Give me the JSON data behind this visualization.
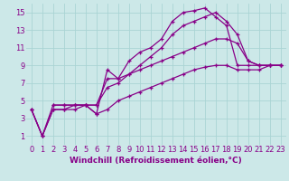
{
  "background_color": "#cce8e8",
  "line_color": "#880088",
  "grid_color": "#aad4d4",
  "xlabel": "Windchill (Refroidissement éolien,°C)",
  "xlabel_fontsize": 6.5,
  "xlim": [
    -0.5,
    23.5
  ],
  "ylim": [
    0,
    16
  ],
  "xticks": [
    0,
    1,
    2,
    3,
    4,
    5,
    6,
    7,
    8,
    9,
    10,
    11,
    12,
    13,
    14,
    15,
    16,
    17,
    18,
    19,
    20,
    21,
    22,
    23
  ],
  "yticks": [
    1,
    3,
    5,
    7,
    9,
    11,
    13,
    15
  ],
  "tick_fontsize": 6.0,
  "lines": [
    {
      "x": [
        0,
        1,
        2,
        3,
        4,
        5,
        6,
        7,
        8,
        9,
        10,
        11,
        12,
        13,
        14,
        15,
        16,
        17,
        18,
        19,
        20,
        21,
        22,
        23
      ],
      "y": [
        4,
        1,
        4.5,
        4.5,
        4.5,
        4.5,
        3.5,
        8.5,
        7.5,
        9.5,
        10.5,
        11,
        12,
        14,
        15,
        15.2,
        15.5,
        14.5,
        13.5,
        9,
        9,
        9,
        9,
        9
      ]
    },
    {
      "x": [
        2,
        3,
        4,
        5,
        6,
        7,
        8,
        9,
        10,
        11,
        12,
        13,
        14,
        15,
        16,
        17,
        18,
        19,
        20,
        21,
        22,
        23
      ],
      "y": [
        4.5,
        4.5,
        4.5,
        4.5,
        4.5,
        6.5,
        7.0,
        8.0,
        9.0,
        10.0,
        11.0,
        12.5,
        13.5,
        14.0,
        14.5,
        15.0,
        14.0,
        12.5,
        9.5,
        9.0,
        9.0,
        9.0
      ]
    },
    {
      "x": [
        0,
        1,
        2,
        3,
        4,
        5,
        6,
        7,
        8,
        9,
        10,
        11,
        12,
        13,
        14,
        15,
        16,
        17,
        18,
        19,
        20,
        21,
        22,
        23
      ],
      "y": [
        4,
        1,
        4,
        4,
        4.5,
        4.5,
        4.5,
        7.5,
        7.5,
        8.0,
        8.5,
        9.0,
        9.5,
        10.0,
        10.5,
        11.0,
        11.5,
        12.0,
        12.0,
        11.5,
        9.5,
        9.0,
        9.0,
        9.0
      ]
    },
    {
      "x": [
        0,
        1,
        2,
        3,
        4,
        5,
        6,
        7,
        8,
        9,
        10,
        11,
        12,
        13,
        14,
        15,
        16,
        17,
        18,
        19,
        20,
        21,
        22,
        23
      ],
      "y": [
        4,
        1,
        4,
        4,
        4,
        4.5,
        3.5,
        4.0,
        5.0,
        5.5,
        6.0,
        6.5,
        7.0,
        7.5,
        8.0,
        8.5,
        8.8,
        9.0,
        9.0,
        8.5,
        8.5,
        8.5,
        9.0,
        9.0
      ]
    }
  ]
}
